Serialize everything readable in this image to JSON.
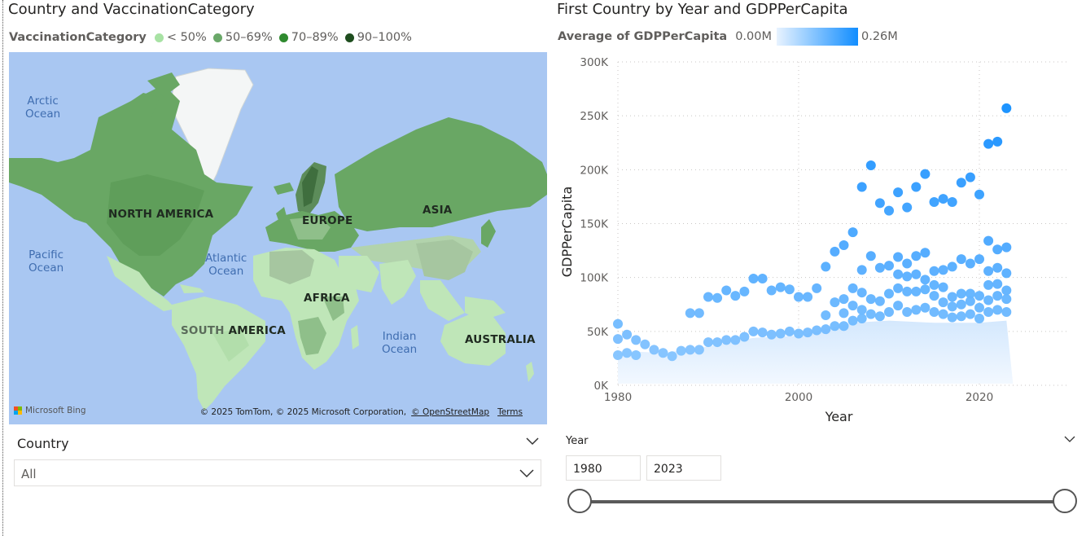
{
  "map_visual": {
    "title": "Country and VaccinationCategory",
    "legend": {
      "title": "VaccinationCategory",
      "items": [
        {
          "label": "< 50%",
          "color": "#a8e2a4"
        },
        {
          "label": "50–69%",
          "color": "#6aa869"
        },
        {
          "label": "70–89%",
          "color": "#2f8a2f"
        },
        {
          "label": "90–100%",
          "color": "#1e4d1e"
        }
      ]
    },
    "oceans": {
      "arctic": "Arctic\nOcean",
      "pacific": "Pacific\nOcean",
      "atlantic": "Atlantic\nOcean",
      "indian": "Indian\nOcean"
    },
    "continents": {
      "na": "NORTH AMERICA",
      "europe": "EUROPE",
      "asia": "ASIA",
      "africa": "AFRICA",
      "sa_prefix": "SOUTH",
      "sa_suffix": "AMERICA",
      "australia": "AUSTRALIA"
    },
    "bing_logo_text": "Microsoft Bing",
    "attribution": "© 2025 TomTom, © 2025 Microsoft Corporation,",
    "attribution_link": "© OpenStreetMap",
    "terms_link": "Terms"
  },
  "country_slicer": {
    "title": "Country",
    "selected": "All"
  },
  "scatter_visual": {
    "title": "First Country by Year and GDPPerCapita",
    "color_legend": {
      "title": "Average of GDPPerCapita",
      "min_label": "0.00M",
      "max_label": "0.26M",
      "min_color": "#e8f3ff",
      "max_color": "#118dff"
    }
  },
  "chart_data": {
    "type": "scatter",
    "title": "First Country by Year and GDPPerCapita",
    "xlabel": "Year",
    "ylabel": "GDPPerCapita",
    "xlim": [
      1980,
      2030
    ],
    "ylim": [
      0,
      300000
    ],
    "x_ticks": [
      "1980",
      "2000",
      "2020"
    ],
    "x_tick_values": [
      1980,
      2000,
      2020
    ],
    "y_ticks": [
      "0K",
      "50K",
      "100K",
      "150K",
      "200K",
      "250K",
      "300K"
    ],
    "y_tick_values": [
      0,
      50000,
      100000,
      150000,
      200000,
      250000,
      300000
    ],
    "grid": true,
    "color_range": [
      0,
      260000
    ],
    "points": [
      [
        1980,
        57000
      ],
      [
        1980,
        43000
      ],
      [
        1980,
        28000
      ],
      [
        1981,
        47000
      ],
      [
        1981,
        30000
      ],
      [
        1982,
        42000
      ],
      [
        1982,
        28000
      ],
      [
        1983,
        38000
      ],
      [
        1984,
        33000
      ],
      [
        1985,
        30000
      ],
      [
        1986,
        27000
      ],
      [
        1987,
        32000
      ],
      [
        1988,
        67000
      ],
      [
        1988,
        33000
      ],
      [
        1989,
        67000
      ],
      [
        1989,
        33000
      ],
      [
        1990,
        82000
      ],
      [
        1990,
        40000
      ],
      [
        1991,
        81000
      ],
      [
        1991,
        40000
      ],
      [
        1992,
        88000
      ],
      [
        1992,
        42000
      ],
      [
        1993,
        83000
      ],
      [
        1993,
        42000
      ],
      [
        1994,
        87000
      ],
      [
        1994,
        45000
      ],
      [
        1995,
        99000
      ],
      [
        1995,
        50000
      ],
      [
        1996,
        99000
      ],
      [
        1996,
        49000
      ],
      [
        1997,
        88000
      ],
      [
        1997,
        47000
      ],
      [
        1998,
        91000
      ],
      [
        1998,
        48000
      ],
      [
        1999,
        89000
      ],
      [
        1999,
        50000
      ],
      [
        2000,
        82000
      ],
      [
        2000,
        48000
      ],
      [
        2001,
        82000
      ],
      [
        2001,
        49000
      ],
      [
        2002,
        90000
      ],
      [
        2002,
        51000
      ],
      [
        2003,
        110000
      ],
      [
        2003,
        65000
      ],
      [
        2003,
        52000
      ],
      [
        2004,
        124000
      ],
      [
        2004,
        77000
      ],
      [
        2004,
        55000
      ],
      [
        2005,
        130000
      ],
      [
        2005,
        80000
      ],
      [
        2005,
        67000
      ],
      [
        2005,
        55000
      ],
      [
        2006,
        142000
      ],
      [
        2006,
        90000
      ],
      [
        2006,
        74000
      ],
      [
        2006,
        60000
      ],
      [
        2007,
        184000
      ],
      [
        2007,
        107000
      ],
      [
        2007,
        86000
      ],
      [
        2007,
        70000
      ],
      [
        2007,
        62000
      ],
      [
        2008,
        204000
      ],
      [
        2008,
        120000
      ],
      [
        2008,
        80000
      ],
      [
        2008,
        66000
      ],
      [
        2009,
        169000
      ],
      [
        2009,
        109000
      ],
      [
        2009,
        78000
      ],
      [
        2009,
        64000
      ],
      [
        2010,
        162000
      ],
      [
        2010,
        111000
      ],
      [
        2010,
        85000
      ],
      [
        2010,
        68000
      ],
      [
        2011,
        179000
      ],
      [
        2011,
        119000
      ],
      [
        2011,
        103000
      ],
      [
        2011,
        90000
      ],
      [
        2011,
        74000
      ],
      [
        2012,
        165000
      ],
      [
        2012,
        113000
      ],
      [
        2012,
        101000
      ],
      [
        2012,
        87000
      ],
      [
        2012,
        68000
      ],
      [
        2013,
        184000
      ],
      [
        2013,
        120000
      ],
      [
        2013,
        103000
      ],
      [
        2013,
        87000
      ],
      [
        2013,
        70000
      ],
      [
        2014,
        196000
      ],
      [
        2014,
        123000
      ],
      [
        2014,
        98000
      ],
      [
        2014,
        89000
      ],
      [
        2014,
        72000
      ],
      [
        2015,
        170000
      ],
      [
        2015,
        106000
      ],
      [
        2015,
        93000
      ],
      [
        2015,
        83000
      ],
      [
        2015,
        68000
      ],
      [
        2016,
        173000
      ],
      [
        2016,
        107000
      ],
      [
        2016,
        91000
      ],
      [
        2016,
        77000
      ],
      [
        2016,
        66000
      ],
      [
        2017,
        170000
      ],
      [
        2017,
        110000
      ],
      [
        2017,
        82000
      ],
      [
        2017,
        73000
      ],
      [
        2017,
        63000
      ],
      [
        2018,
        188000
      ],
      [
        2018,
        117000
      ],
      [
        2018,
        85000
      ],
      [
        2018,
        75000
      ],
      [
        2018,
        64000
      ],
      [
        2019,
        193000
      ],
      [
        2019,
        113000
      ],
      [
        2019,
        85000
      ],
      [
        2019,
        78000
      ],
      [
        2019,
        66000
      ],
      [
        2020,
        177000
      ],
      [
        2020,
        117000
      ],
      [
        2020,
        83000
      ],
      [
        2020,
        72000
      ],
      [
        2020,
        62000
      ],
      [
        2021,
        224000
      ],
      [
        2021,
        134000
      ],
      [
        2021,
        106000
      ],
      [
        2021,
        93000
      ],
      [
        2021,
        79000
      ],
      [
        2021,
        68000
      ],
      [
        2022,
        226000
      ],
      [
        2022,
        126000
      ],
      [
        2022,
        109000
      ],
      [
        2022,
        94000
      ],
      [
        2022,
        83000
      ],
      [
        2022,
        70000
      ],
      [
        2023,
        257000
      ],
      [
        2023,
        128000
      ],
      [
        2023,
        104000
      ],
      [
        2023,
        88000
      ],
      [
        2023,
        80000
      ],
      [
        2023,
        68000
      ]
    ]
  },
  "year_slicer": {
    "title": "Year",
    "from": "1980",
    "to": "2023",
    "range_min": 1980,
    "range_max": 2023,
    "selected": [
      1980,
      2023
    ]
  }
}
